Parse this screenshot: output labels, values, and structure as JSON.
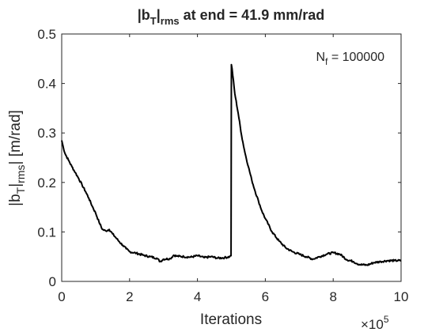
{
  "chart_data": {
    "type": "line",
    "title": {
      "prefix": "|b",
      "sub1": "T",
      "mid": "|",
      "sub2": "rms",
      "suffix": " at end = 41.9 mm/rad"
    },
    "xlabel": "Iterations",
    "ylabel": {
      "prefix": "|b",
      "sub1": "T",
      "mid": "|",
      "sub2": "rms",
      "suffix": "| [m/rad]"
    },
    "annotation": {
      "prefix": "N",
      "sub": "f",
      "suffix": " = 100000"
    },
    "x_exponent_label": {
      "base": "×10",
      "exp": "5"
    },
    "xlim": [
      0,
      10
    ],
    "ylim": [
      0,
      0.5
    ],
    "xticks": [
      "0",
      "2",
      "4",
      "6",
      "8",
      "10"
    ],
    "yticks": [
      "0",
      "0.1",
      "0.2",
      "0.3",
      "0.4",
      "0.5"
    ],
    "grid": false,
    "series": [
      {
        "color": "#000000",
        "x": [
          0,
          0.05,
          0.1,
          0.2,
          0.3,
          0.4,
          0.5,
          0.6,
          0.7,
          0.8,
          0.9,
          1.0,
          1.1,
          1.2,
          1.3,
          1.4,
          1.5,
          1.6,
          1.7,
          1.8,
          1.9,
          2.0,
          2.2,
          2.4,
          2.6,
          2.8,
          2.9,
          3.0,
          3.2,
          3.3,
          3.4,
          3.6,
          3.8,
          4.0,
          4.2,
          4.4,
          4.6,
          4.8,
          4.95,
          4.99,
          5.0,
          5.02,
          5.1,
          5.2,
          5.3,
          5.4,
          5.5,
          5.6,
          5.7,
          5.8,
          5.9,
          6.0,
          6.2,
          6.4,
          6.6,
          6.8,
          7.0,
          7.2,
          7.4,
          7.6,
          7.8,
          8.0,
          8.2,
          8.4,
          8.6,
          8.7,
          8.8,
          9.0,
          9.2,
          9.4,
          9.6,
          9.8,
          10.0
        ],
        "y": [
          0.285,
          0.27,
          0.258,
          0.245,
          0.232,
          0.22,
          0.208,
          0.195,
          0.182,
          0.168,
          0.152,
          0.138,
          0.12,
          0.105,
          0.102,
          0.105,
          0.096,
          0.088,
          0.08,
          0.073,
          0.066,
          0.06,
          0.057,
          0.053,
          0.05,
          0.047,
          0.04,
          0.045,
          0.046,
          0.053,
          0.051,
          0.05,
          0.049,
          0.052,
          0.048,
          0.05,
          0.047,
          0.048,
          0.05,
          0.052,
          0.438,
          0.43,
          0.38,
          0.34,
          0.295,
          0.26,
          0.232,
          0.205,
          0.182,
          0.162,
          0.142,
          0.127,
          0.1,
          0.082,
          0.068,
          0.06,
          0.055,
          0.05,
          0.045,
          0.05,
          0.055,
          0.058,
          0.055,
          0.044,
          0.04,
          0.036,
          0.034,
          0.033,
          0.038,
          0.04,
          0.042,
          0.042,
          0.042
        ]
      }
    ]
  }
}
